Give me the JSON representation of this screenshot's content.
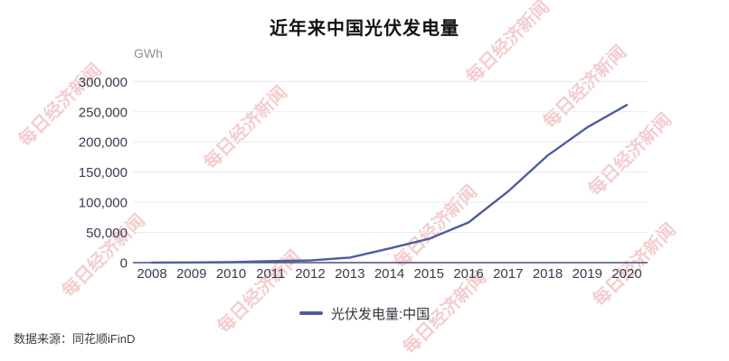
{
  "chart_data": {
    "type": "line",
    "title": "近年来中国光伏发电量",
    "unit": "GWh",
    "categories": [
      "2008",
      "2009",
      "2010",
      "2011",
      "2012",
      "2013",
      "2014",
      "2015",
      "2016",
      "2017",
      "2018",
      "2019",
      "2020"
    ],
    "series": [
      {
        "name": "光伏发电量:中国",
        "values": [
          100,
          300,
          700,
          2600,
          3600,
          8400,
          23500,
          39500,
          66500,
          118000,
          177500,
          224000,
          261100
        ]
      }
    ],
    "ylim": [
      0,
      300000
    ],
    "ytick_step": 50000,
    "yticks": [
      "0",
      "50,000",
      "100,000",
      "150,000",
      "200,000",
      "250,000",
      "300,000"
    ],
    "grid": "horizontal",
    "legend_position": "bottom"
  },
  "footer": {
    "source": "数据来源：同花顺iFinD"
  },
  "watermark": {
    "text": "每日经济新闻",
    "color": "#df7070"
  },
  "colors": {
    "line": "#4f5d9e",
    "axis": "#454f80",
    "grid": "#e9e9f2",
    "tick": "#3b3b4f",
    "unit": "#8e8e96",
    "title": "#111111"
  }
}
